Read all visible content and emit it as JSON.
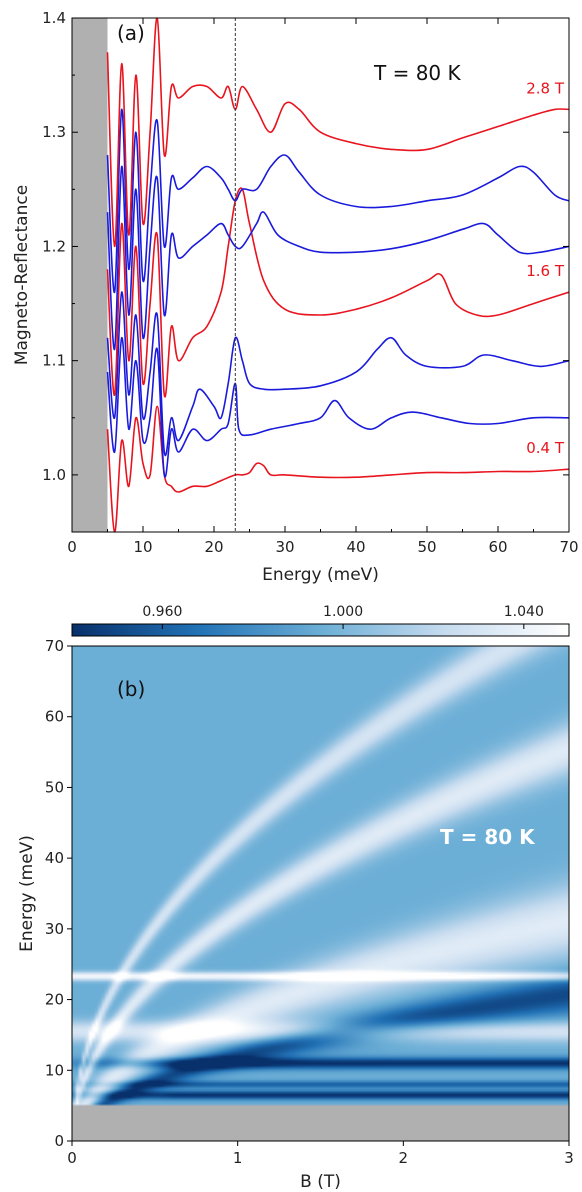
{
  "chart_data": [
    {
      "type": "line",
      "panel_label": "(a)",
      "annotation": "T = 80 K",
      "xlabel": "Energy (meV)",
      "ylabel": "Magneto-Reflectance",
      "xlim": [
        0,
        70
      ],
      "ylim": [
        0.95,
        1.4
      ],
      "xticks": [
        "0",
        "10",
        "20",
        "30",
        "40",
        "50",
        "60",
        "70"
      ],
      "yticks": [
        "1.0",
        "1.1",
        "1.2",
        "1.3",
        "1.4"
      ],
      "shaded_region_x": [
        0,
        5
      ],
      "shaded_color": "#b0b0b0",
      "reference_line_x": 23,
      "colors": {
        "highlight": "#e8141e",
        "other": "#1a1adc"
      },
      "series_labels": [
        {
          "text": "2.8 T",
          "index": 6
        },
        {
          "text": "1.6 T",
          "index": 3
        },
        {
          "text": "0.4 T",
          "index": 0
        }
      ],
      "series": [
        {
          "offset": 1.0,
          "color": "red",
          "values": [
            [
              5,
              1.04
            ],
            [
              6,
              0.95
            ],
            [
              7,
              1.03
            ],
            [
              8,
              0.99
            ],
            [
              9,
              1.05
            ],
            [
              10,
              1.01
            ],
            [
              11,
              1.0
            ],
            [
              12,
              1.06
            ],
            [
              13,
              1.0
            ],
            [
              14,
              0.99
            ],
            [
              15,
              0.985
            ],
            [
              17,
              0.99
            ],
            [
              19,
              0.99
            ],
            [
              21,
              0.995
            ],
            [
              23,
              1.0
            ],
            [
              24,
              1.0
            ],
            [
              25,
              1.002
            ],
            [
              26,
              1.01
            ],
            [
              27,
              1.008
            ],
            [
              28,
              1.0
            ],
            [
              30,
              1.0
            ],
            [
              35,
              0.998
            ],
            [
              40,
              0.998
            ],
            [
              45,
              1.0
            ],
            [
              50,
              1.002
            ],
            [
              55,
              1.002
            ],
            [
              60,
              1.003
            ],
            [
              65,
              1.003
            ],
            [
              70,
              1.005
            ]
          ]
        },
        {
          "offset": 1.035,
          "color": "blue",
          "values": [
            [
              5,
              1.09
            ],
            [
              6,
              1.02
            ],
            [
              7,
              1.12
            ],
            [
              8,
              1.04
            ],
            [
              9,
              1.1
            ],
            [
              10,
              1.03
            ],
            [
              11,
              1.05
            ],
            [
              12,
              1.11
            ],
            [
              13,
              1.0
            ],
            [
              14,
              1.04
            ],
            [
              15,
              1.02
            ],
            [
              17,
              1.04
            ],
            [
              19,
              1.03
            ],
            [
              21,
              1.04
            ],
            [
              22,
              1.045
            ],
            [
              23,
              1.08
            ],
            [
              23.5,
              1.04
            ],
            [
              25,
              1.035
            ],
            [
              28,
              1.04
            ],
            [
              32,
              1.045
            ],
            [
              35,
              1.05
            ],
            [
              37,
              1.065
            ],
            [
              39,
              1.05
            ],
            [
              42,
              1.04
            ],
            [
              45,
              1.05
            ],
            [
              48,
              1.055
            ],
            [
              52,
              1.05
            ],
            [
              56,
              1.045
            ],
            [
              60,
              1.045
            ],
            [
              65,
              1.05
            ],
            [
              70,
              1.05
            ]
          ]
        },
        {
          "offset": 1.07,
          "color": "blue",
          "values": [
            [
              5,
              1.12
            ],
            [
              6,
              1.05
            ],
            [
              7,
              1.16
            ],
            [
              8,
              1.07
            ],
            [
              9,
              1.14
            ],
            [
              10,
              1.05
            ],
            [
              11,
              1.09
            ],
            [
              12,
              1.14
            ],
            [
              13,
              1.02
            ],
            [
              14,
              1.05
            ],
            [
              15,
              1.03
            ],
            [
              17,
              1.06
            ],
            [
              18,
              1.075
            ],
            [
              20,
              1.06
            ],
            [
              21,
              1.05
            ],
            [
              22,
              1.08
            ],
            [
              23,
              1.12
            ],
            [
              24,
              1.1
            ],
            [
              25,
              1.08
            ],
            [
              27,
              1.075
            ],
            [
              30,
              1.075
            ],
            [
              35,
              1.078
            ],
            [
              40,
              1.09
            ],
            [
              43,
              1.11
            ],
            [
              45,
              1.12
            ],
            [
              47,
              1.105
            ],
            [
              50,
              1.095
            ],
            [
              55,
              1.095
            ],
            [
              58,
              1.105
            ],
            [
              62,
              1.1
            ],
            [
              66,
              1.095
            ],
            [
              70,
              1.1
            ]
          ]
        },
        {
          "offset": 1.125,
          "color": "red",
          "values": [
            [
              5,
              1.18
            ],
            [
              6,
              1.07
            ],
            [
              7,
              1.22
            ],
            [
              8,
              1.1
            ],
            [
              9,
              1.2
            ],
            [
              10,
              1.08
            ],
            [
              11,
              1.15
            ],
            [
              12,
              1.21
            ],
            [
              13,
              1.07
            ],
            [
              14,
              1.13
            ],
            [
              15,
              1.1
            ],
            [
              17,
              1.12
            ],
            [
              19,
              1.13
            ],
            [
              21,
              1.16
            ],
            [
              22,
              1.2
            ],
            [
              23,
              1.24
            ],
            [
              24,
              1.25
            ],
            [
              25,
              1.22
            ],
            [
              27,
              1.17
            ],
            [
              30,
              1.145
            ],
            [
              35,
              1.14
            ],
            [
              40,
              1.145
            ],
            [
              45,
              1.155
            ],
            [
              50,
              1.17
            ],
            [
              52,
              1.175
            ],
            [
              54,
              1.15
            ],
            [
              57,
              1.14
            ],
            [
              60,
              1.14
            ],
            [
              65,
              1.15
            ],
            [
              70,
              1.16
            ]
          ]
        },
        {
          "offset": 1.165,
          "color": "blue",
          "values": [
            [
              5,
              1.23
            ],
            [
              6,
              1.11
            ],
            [
              7,
              1.27
            ],
            [
              8,
              1.14
            ],
            [
              9,
              1.25
            ],
            [
              10,
              1.12
            ],
            [
              11,
              1.2
            ],
            [
              12,
              1.26
            ],
            [
              13,
              1.14
            ],
            [
              14,
              1.21
            ],
            [
              15,
              1.19
            ],
            [
              17,
              1.2
            ],
            [
              19,
              1.21
            ],
            [
              21,
              1.22
            ],
            [
              22,
              1.21
            ],
            [
              23,
              1.2
            ],
            [
              24,
              1.2
            ],
            [
              26,
              1.22
            ],
            [
              27,
              1.23
            ],
            [
              29,
              1.21
            ],
            [
              32,
              1.2
            ],
            [
              35,
              1.195
            ],
            [
              40,
              1.195
            ],
            [
              45,
              1.198
            ],
            [
              50,
              1.205
            ],
            [
              55,
              1.215
            ],
            [
              58,
              1.22
            ],
            [
              60,
              1.21
            ],
            [
              63,
              1.195
            ],
            [
              66,
              1.195
            ],
            [
              70,
              1.2
            ]
          ]
        },
        {
          "offset": 1.2,
          "color": "blue",
          "values": [
            [
              5,
              1.28
            ],
            [
              6,
              1.16
            ],
            [
              7,
              1.32
            ],
            [
              8,
              1.18
            ],
            [
              9,
              1.3
            ],
            [
              10,
              1.17
            ],
            [
              11,
              1.25
            ],
            [
              12,
              1.31
            ],
            [
              13,
              1.2
            ],
            [
              14,
              1.26
            ],
            [
              15,
              1.25
            ],
            [
              17,
              1.26
            ],
            [
              19,
              1.27
            ],
            [
              21,
              1.26
            ],
            [
              22,
              1.25
            ],
            [
              23,
              1.24
            ],
            [
              24,
              1.25
            ],
            [
              26,
              1.25
            ],
            [
              28,
              1.27
            ],
            [
              30,
              1.28
            ],
            [
              32,
              1.265
            ],
            [
              35,
              1.245
            ],
            [
              40,
              1.235
            ],
            [
              45,
              1.235
            ],
            [
              50,
              1.24
            ],
            [
              55,
              1.245
            ],
            [
              60,
              1.26
            ],
            [
              63,
              1.27
            ],
            [
              65,
              1.265
            ],
            [
              68,
              1.245
            ],
            [
              70,
              1.24
            ]
          ]
        },
        {
          "offset": 1.25,
          "color": "red",
          "values": [
            [
              5,
              1.37
            ],
            [
              6,
              1.2
            ],
            [
              7,
              1.36
            ],
            [
              8,
              1.21
            ],
            [
              9,
              1.35
            ],
            [
              10,
              1.22
            ],
            [
              11,
              1.3
            ],
            [
              12,
              1.4
            ],
            [
              13,
              1.28
            ],
            [
              14,
              1.34
            ],
            [
              15,
              1.33
            ],
            [
              17,
              1.34
            ],
            [
              19,
              1.34
            ],
            [
              21,
              1.33
            ],
            [
              22,
              1.34
            ],
            [
              23,
              1.32
            ],
            [
              24,
              1.34
            ],
            [
              26,
              1.32
            ],
            [
              28,
              1.3
            ],
            [
              30,
              1.325
            ],
            [
              32,
              1.32
            ],
            [
              35,
              1.3
            ],
            [
              40,
              1.29
            ],
            [
              45,
              1.285
            ],
            [
              50,
              1.285
            ],
            [
              55,
              1.295
            ],
            [
              60,
              1.305
            ],
            [
              65,
              1.315
            ],
            [
              68,
              1.32
            ],
            [
              70,
              1.32
            ]
          ]
        }
      ]
    },
    {
      "type": "heatmap",
      "panel_label": "(b)",
      "annotation": "T = 80 K",
      "xlabel": "B (T)",
      "ylabel": "Energy (meV)",
      "xlim": [
        0,
        3
      ],
      "ylim": [
        0,
        70
      ],
      "xticks": [
        "0",
        "1",
        "2",
        "3"
      ],
      "yticks": [
        "0",
        "10",
        "20",
        "30",
        "40",
        "50",
        "60",
        "70"
      ],
      "colorbar": {
        "min": 0.94,
        "max": 1.05,
        "ticks": [
          "0.960",
          "1.000",
          "1.040"
        ],
        "tick_values": [
          0.96,
          1.0,
          1.04
        ]
      },
      "colormap": [
        "#08306b",
        "#2171b5",
        "#6baed6",
        "#c6dbef",
        "#ffffff"
      ],
      "masked_below_energy": 5,
      "background_level": 0.995,
      "features": [
        {
          "kind": "branch",
          "form": "E = a*sqrt(B)",
          "a": 43.0,
          "level": 1.03,
          "width": 1.2
        },
        {
          "kind": "branch",
          "form": "E = a*sqrt(B)",
          "a": 32.0,
          "level": 1.035,
          "width": 1.3
        },
        {
          "kind": "branch",
          "form": "E = a*sqrt(B)",
          "a": 18.0,
          "level": 1.035,
          "width": 1.8
        },
        {
          "kind": "branch",
          "form": "E = a*sqrt(B)",
          "a": 12.0,
          "level": 0.95,
          "width": 1.0
        },
        {
          "kind": "horizontal",
          "energy": 23.3,
          "level": 1.045,
          "width": 0.6
        },
        {
          "kind": "horizontal",
          "energy": 11.0,
          "level": 0.94,
          "width": 0.8
        },
        {
          "kind": "horizontal",
          "energy": 8.0,
          "level": 0.96,
          "width": 0.5
        },
        {
          "kind": "horizontal",
          "energy": 6.5,
          "level": 0.94,
          "width": 0.6
        },
        {
          "kind": "horizontal",
          "energy": 15.5,
          "level": 1.03,
          "width": 1.5
        }
      ]
    }
  ]
}
